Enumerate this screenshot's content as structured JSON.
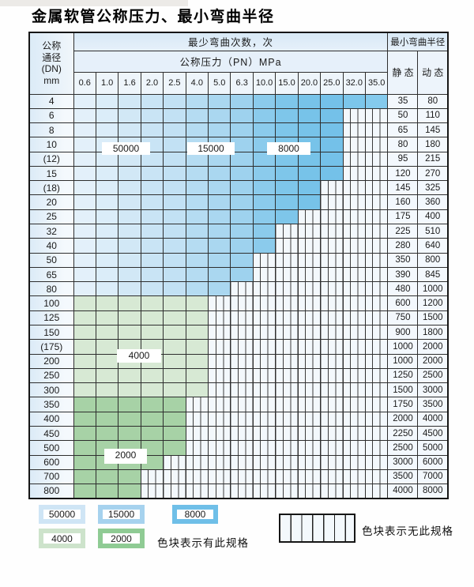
{
  "title": "金属软管公称压力、最小弯曲半径",
  "table": {
    "corner": [
      "公称",
      "通径",
      "(DN)",
      "mm"
    ],
    "cycles_header": "最少弯曲次数，次",
    "pressure_header": "公称压力（PN）MPa",
    "radius_header": "最小弯曲半径",
    "static_label": "静 态",
    "dynamic_label": "动 态",
    "pressure_columns": [
      "0.6",
      "1.0",
      "1.6",
      "2.0",
      "2.5",
      "4.0",
      "5.0",
      "6.3",
      "10.0",
      "15.0",
      "20.0",
      "25.0",
      "32.0",
      "35.0"
    ],
    "rows": [
      {
        "dn": "4",
        "colored": 14,
        "zone": "blue",
        "static": "35",
        "dynamic": "80"
      },
      {
        "dn": "6",
        "colored": 12,
        "zone": "blue",
        "static": "50",
        "dynamic": "110"
      },
      {
        "dn": "8",
        "colored": 12,
        "zone": "blue",
        "static": "65",
        "dynamic": "145"
      },
      {
        "dn": "10",
        "colored": 12,
        "zone": "blue",
        "static": "80",
        "dynamic": "180"
      },
      {
        "dn": "(12)",
        "colored": 12,
        "zone": "blue",
        "static": "95",
        "dynamic": "215"
      },
      {
        "dn": "15",
        "colored": 12,
        "zone": "blue",
        "static": "120",
        "dynamic": "270"
      },
      {
        "dn": "(18)",
        "colored": 11,
        "zone": "blue",
        "static": "145",
        "dynamic": "325"
      },
      {
        "dn": "20",
        "colored": 11,
        "zone": "blue",
        "static": "160",
        "dynamic": "360"
      },
      {
        "dn": "25",
        "colored": 10,
        "zone": "blue",
        "static": "175",
        "dynamic": "400"
      },
      {
        "dn": "32",
        "colored": 9,
        "zone": "blue",
        "static": "225",
        "dynamic": "510"
      },
      {
        "dn": "40",
        "colored": 9,
        "zone": "blue",
        "static": "280",
        "dynamic": "640"
      },
      {
        "dn": "50",
        "colored": 8,
        "zone": "blue",
        "static": "350",
        "dynamic": "800"
      },
      {
        "dn": "65",
        "colored": 8,
        "zone": "blue",
        "static": "390",
        "dynamic": "845"
      },
      {
        "dn": "80",
        "colored": 7,
        "zone": "blue",
        "static": "480",
        "dynamic": "1000"
      },
      {
        "dn": "100",
        "colored": 6,
        "zone": "green4000",
        "static": "600",
        "dynamic": "1200"
      },
      {
        "dn": "125",
        "colored": 6,
        "zone": "green4000",
        "static": "750",
        "dynamic": "1500"
      },
      {
        "dn": "150",
        "colored": 6,
        "zone": "green4000",
        "static": "900",
        "dynamic": "1800"
      },
      {
        "dn": "(175)",
        "colored": 6,
        "zone": "green4000",
        "static": "1000",
        "dynamic": "2000"
      },
      {
        "dn": "200",
        "colored": 6,
        "zone": "green4000",
        "static": "1000",
        "dynamic": "2000"
      },
      {
        "dn": "250",
        "colored": 6,
        "zone": "green4000",
        "static": "1250",
        "dynamic": "2500"
      },
      {
        "dn": "300",
        "colored": 6,
        "zone": "green4000",
        "static": "1500",
        "dynamic": "3000"
      },
      {
        "dn": "350",
        "colored": 5,
        "zone": "green2000",
        "static": "1750",
        "dynamic": "3500"
      },
      {
        "dn": "400",
        "colored": 5,
        "zone": "green2000",
        "static": "2000",
        "dynamic": "4000"
      },
      {
        "dn": "450",
        "colored": 5,
        "zone": "green2000",
        "static": "2250",
        "dynamic": "4500"
      },
      {
        "dn": "500",
        "colored": 5,
        "zone": "green2000",
        "static": "2500",
        "dynamic": "5000"
      },
      {
        "dn": "600",
        "colored": 4,
        "zone": "green2000",
        "static": "3000",
        "dynamic": "6000"
      },
      {
        "dn": "700",
        "colored": 3,
        "zone": "green2000",
        "static": "3500",
        "dynamic": "7000"
      },
      {
        "dn": "800",
        "colored": 3,
        "zone": "green2000",
        "static": "4000",
        "dynamic": "8000"
      }
    ]
  },
  "zone_labels": [
    "50000",
    "15000",
    "8000",
    "4000",
    "2000"
  ],
  "legend": {
    "items": [
      "50000",
      "15000",
      "8000",
      "4000",
      "2000"
    ],
    "has_spec_text": "色块表示有此规格",
    "no_spec_text": "色块表示无此规格"
  },
  "colors": {
    "blue_columns": [
      "#e3f0fa",
      "#dbedf9",
      "#d2e8f6",
      "#c9e4f5",
      "#c2e1f4",
      "#b5dcf2",
      "#aad7f0",
      "#9ed2ee",
      "#8bcbec",
      "#7ec6ea",
      "#77c3e9",
      "#74c1e9",
      "#7cc6eb",
      "#84caed"
    ],
    "green_4000": "#d7e9d4",
    "green_2000": "#a7d2a6",
    "legend_50000": "#cfe5f5",
    "legend_15000": "#a6d2ee",
    "legend_8000": "#6fbfe8",
    "legend_4000": "#cde3cb",
    "legend_2000": "#8fcb94",
    "hatch_fill": "#f3f8fc",
    "grid_line": "#2e2e2e"
  }
}
